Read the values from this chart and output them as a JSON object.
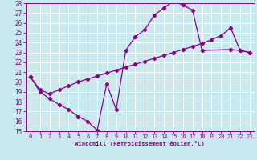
{
  "xlabel": "Windchill (Refroidissement éolien,°C)",
  "bg_color": "#c8eaee",
  "line_color": "#880088",
  "grid_color": "#ffffff",
  "xlim": [
    -0.5,
    23.5
  ],
  "ylim": [
    15,
    28
  ],
  "xticks": [
    0,
    1,
    2,
    3,
    4,
    5,
    6,
    7,
    8,
    9,
    10,
    11,
    12,
    13,
    14,
    15,
    16,
    17,
    18,
    19,
    20,
    21,
    22,
    23
  ],
  "yticks": [
    15,
    16,
    17,
    18,
    19,
    20,
    21,
    22,
    23,
    24,
    25,
    26,
    27,
    28
  ],
  "curve1_x": [
    0,
    1,
    2,
    3,
    4,
    5,
    6,
    7,
    8,
    9,
    10,
    11,
    12,
    13,
    14,
    15,
    16,
    17,
    18,
    21,
    22,
    23
  ],
  "curve1_y": [
    20.5,
    19.0,
    18.3,
    17.7,
    17.2,
    16.5,
    16.0,
    15.1,
    19.8,
    17.2,
    23.2,
    24.6,
    25.3,
    26.8,
    27.5,
    28.2,
    27.8,
    27.3,
    23.2,
    23.3,
    23.2,
    23.0
  ],
  "curve2_x": [
    0,
    1,
    2,
    3,
    4,
    5,
    6,
    7,
    8,
    9,
    10,
    11,
    12,
    13,
    14,
    15,
    16,
    17,
    18,
    19,
    20,
    21,
    22,
    23
  ],
  "curve2_y": [
    20.5,
    19.2,
    18.8,
    19.2,
    19.6,
    20.0,
    20.3,
    20.6,
    20.9,
    21.2,
    21.5,
    21.8,
    22.1,
    22.4,
    22.7,
    23.0,
    23.3,
    23.6,
    23.9,
    24.3,
    24.7,
    25.5,
    23.2,
    23.0
  ]
}
